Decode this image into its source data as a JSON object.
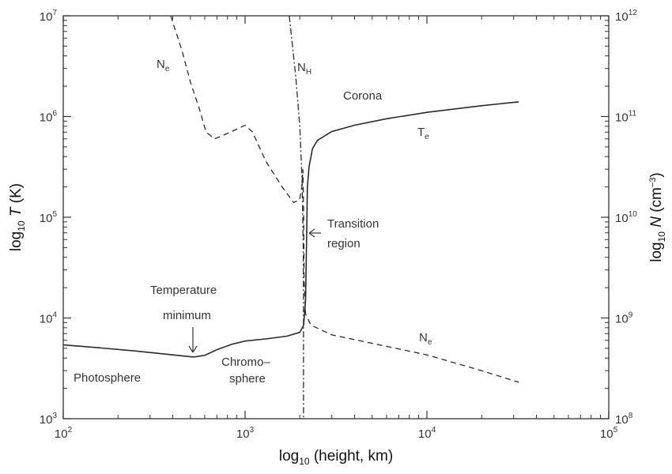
{
  "chart_data": {
    "type": "line",
    "title": "",
    "x_axis": {
      "label_prefix": "log",
      "label_sub": "10",
      "label_rest": " (height, km)",
      "scale": "log",
      "range": [
        100,
        100000
      ],
      "ticks": [
        {
          "value": 100,
          "base": "10",
          "exp": "2"
        },
        {
          "value": 1000,
          "base": "10",
          "exp": "3"
        },
        {
          "value": 10000,
          "base": "10",
          "exp": "4"
        },
        {
          "value": 100000,
          "base": "10",
          "exp": "5"
        }
      ]
    },
    "y_axis_left": {
      "label_prefix": "log",
      "label_sub": "10",
      "label_var": "T",
      "label_rest": " (K)",
      "scale": "log",
      "range": [
        1000,
        10000000
      ],
      "ticks": [
        {
          "value": 1000,
          "base": "10",
          "exp": "3"
        },
        {
          "value": 10000,
          "base": "10",
          "exp": "4"
        },
        {
          "value": 100000,
          "base": "10",
          "exp": "5"
        },
        {
          "value": 1000000,
          "base": "10",
          "exp": "6"
        },
        {
          "value": 10000000,
          "base": "10",
          "exp": "7"
        }
      ]
    },
    "y_axis_right": {
      "label_prefix": "log",
      "label_sub": "10",
      "label_var": "N",
      "label_rest": " (cm",
      "label_sup": "−3",
      "label_close": ")",
      "scale": "log",
      "range": [
        100000000,
        1000000000000
      ],
      "ticks": [
        {
          "value": 100000000,
          "base": "10",
          "exp": "8"
        },
        {
          "value": 1000000000,
          "base": "10",
          "exp": "9"
        },
        {
          "value": 10000000000,
          "base": "10",
          "exp": "10"
        },
        {
          "value": 100000000000,
          "base": "10",
          "exp": "11"
        },
        {
          "value": 1000000000000,
          "base": "10",
          "exp": "12"
        }
      ]
    },
    "grid": false,
    "series": [
      {
        "name": "Te",
        "axis": "left",
        "style": "solid",
        "points": [
          [
            100,
            5400
          ],
          [
            150,
            5100
          ],
          [
            250,
            4700
          ],
          [
            400,
            4300
          ],
          [
            520,
            4100
          ],
          [
            600,
            4250
          ],
          [
            700,
            4850
          ],
          [
            850,
            5500
          ],
          [
            1000,
            5900
          ],
          [
            1300,
            6200
          ],
          [
            1700,
            6600
          ],
          [
            2000,
            7200
          ],
          [
            2100,
            8500
          ],
          [
            2150,
            15000
          ],
          [
            2180,
            60000
          ],
          [
            2200,
            200000
          ],
          [
            2250,
            320000
          ],
          [
            2350,
            480000
          ],
          [
            2500,
            580000
          ],
          [
            3000,
            710000
          ],
          [
            4000,
            820000
          ],
          [
            6000,
            950000
          ],
          [
            10000,
            1100000
          ],
          [
            20000,
            1280000
          ],
          [
            32000,
            1400000
          ]
        ]
      },
      {
        "name": "Ne",
        "axis": "right",
        "style": "dashed",
        "points": [
          [
            390,
            1000000000000
          ],
          [
            450,
            450000000000
          ],
          [
            500,
            220000000000
          ],
          [
            560,
            120000000000
          ],
          [
            610,
            70000000000
          ],
          [
            680,
            60000000000
          ],
          [
            800,
            68000000000
          ],
          [
            1000,
            82000000000
          ],
          [
            1100,
            70000000000
          ],
          [
            1300,
            36000000000
          ],
          [
            1600,
            20000000000
          ],
          [
            1850,
            14000000000
          ],
          [
            2000,
            15000000000
          ],
          [
            2050,
            20000000000
          ],
          [
            2080,
            30000000000
          ],
          [
            2100,
            10000000000
          ],
          [
            2110,
            2500000000
          ],
          [
            2150,
            1100000000
          ],
          [
            2300,
            850000000
          ],
          [
            3000,
            680000000
          ],
          [
            5000,
            560000000
          ],
          [
            10000,
            430000000
          ],
          [
            20000,
            300000000
          ],
          [
            32000,
            230000000
          ]
        ]
      },
      {
        "name": "NH",
        "axis": "right",
        "style": "dashdot",
        "points": [
          [
            1750,
            1000000000000
          ],
          [
            1900,
            250000000000
          ],
          [
            2000,
            80000000000
          ],
          [
            2060,
            22000000000
          ],
          [
            2090,
            5000000000
          ],
          [
            2095,
            1000000000
          ],
          [
            2095,
            100000000
          ]
        ]
      }
    ],
    "annotations": [
      {
        "text": "N",
        "sub": "e"
      },
      {
        "text": "N",
        "sub": "H"
      },
      {
        "text": "Corona",
        "sub": ""
      },
      {
        "text": "T",
        "sub": "e"
      },
      {
        "text": "Transition",
        "sub": ""
      },
      {
        "text": "region",
        "sub": ""
      },
      {
        "text": "Temperature",
        "sub": ""
      },
      {
        "text": "minimum",
        "sub": ""
      },
      {
        "text": "Chromo–",
        "sub": ""
      },
      {
        "text": "sphere",
        "sub": ""
      },
      {
        "text": "Photosphere",
        "sub": ""
      },
      {
        "text": "N",
        "sub": "e"
      }
    ]
  }
}
